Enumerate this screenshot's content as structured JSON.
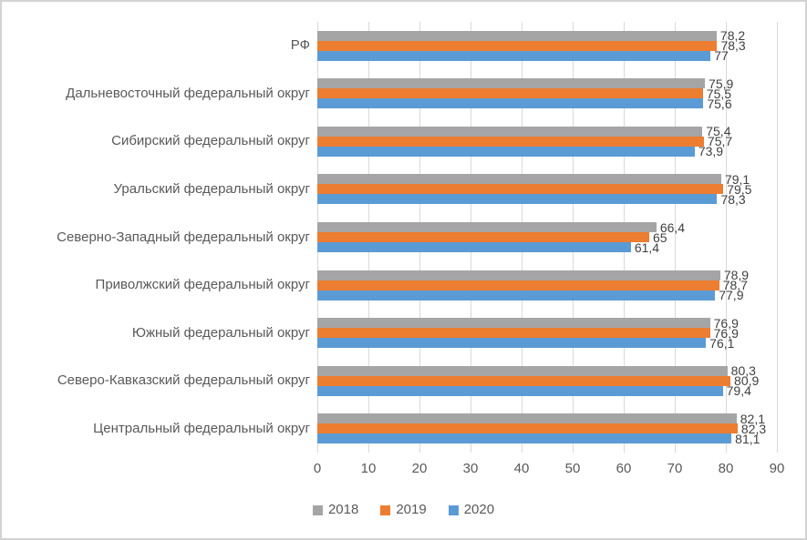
{
  "chart_data": {
    "type": "bar",
    "orientation": "horizontal",
    "title": "",
    "categories": [
      "РФ",
      "Дальневосточный федеральный округ",
      "Сибирский федеральный округ",
      "Уральский федеральный округ",
      "Северно-Западный федеральный округ",
      "Приволжский федеральный округ",
      "Южный федеральный округ",
      "Северо-Кавказский федеральный округ",
      "Центральный федеральный округ"
    ],
    "series": [
      {
        "name": "2018",
        "color": "#A5A5A5",
        "values": [
          78.2,
          75.9,
          75.4,
          79.1,
          66.4,
          78.9,
          76.9,
          80.3,
          82.1
        ],
        "labels": [
          "78,2",
          "75,9",
          "75,4",
          "79,1",
          "66,4",
          "78,9",
          "76,9",
          "80,3",
          "82,1"
        ]
      },
      {
        "name": "2019",
        "color": "#ED7D31",
        "values": [
          78.3,
          75.5,
          75.7,
          79.5,
          65,
          78.7,
          76.9,
          80.9,
          82.3
        ],
        "labels": [
          "78,3",
          "75,5",
          "75,7",
          "79,5",
          "65",
          "78,7",
          "76,9",
          "80,9",
          "82,3"
        ]
      },
      {
        "name": "2020",
        "color": "#5B9BD5",
        "values": [
          77,
          75.6,
          73.9,
          78.3,
          61.4,
          77.9,
          76.1,
          79.4,
          81.1
        ],
        "labels": [
          "77",
          "75,6",
          "73,9",
          "78,3",
          "61,4",
          "77,9",
          "76,1",
          "79,4",
          "81,1"
        ]
      }
    ],
    "x_axis": {
      "min": 0,
      "max": 90,
      "ticks": [
        0,
        10,
        20,
        30,
        40,
        50,
        60,
        70,
        80,
        90
      ]
    },
    "legend": [
      "2018",
      "2019",
      "2020"
    ],
    "legend_position": "bottom",
    "grid": true
  },
  "colors": {
    "gridline": "#D9D9D9",
    "axis_text": "#595959",
    "value_label_text": "#404040",
    "background": "#FFFFFF",
    "frame_border": "#D3D3D3"
  }
}
